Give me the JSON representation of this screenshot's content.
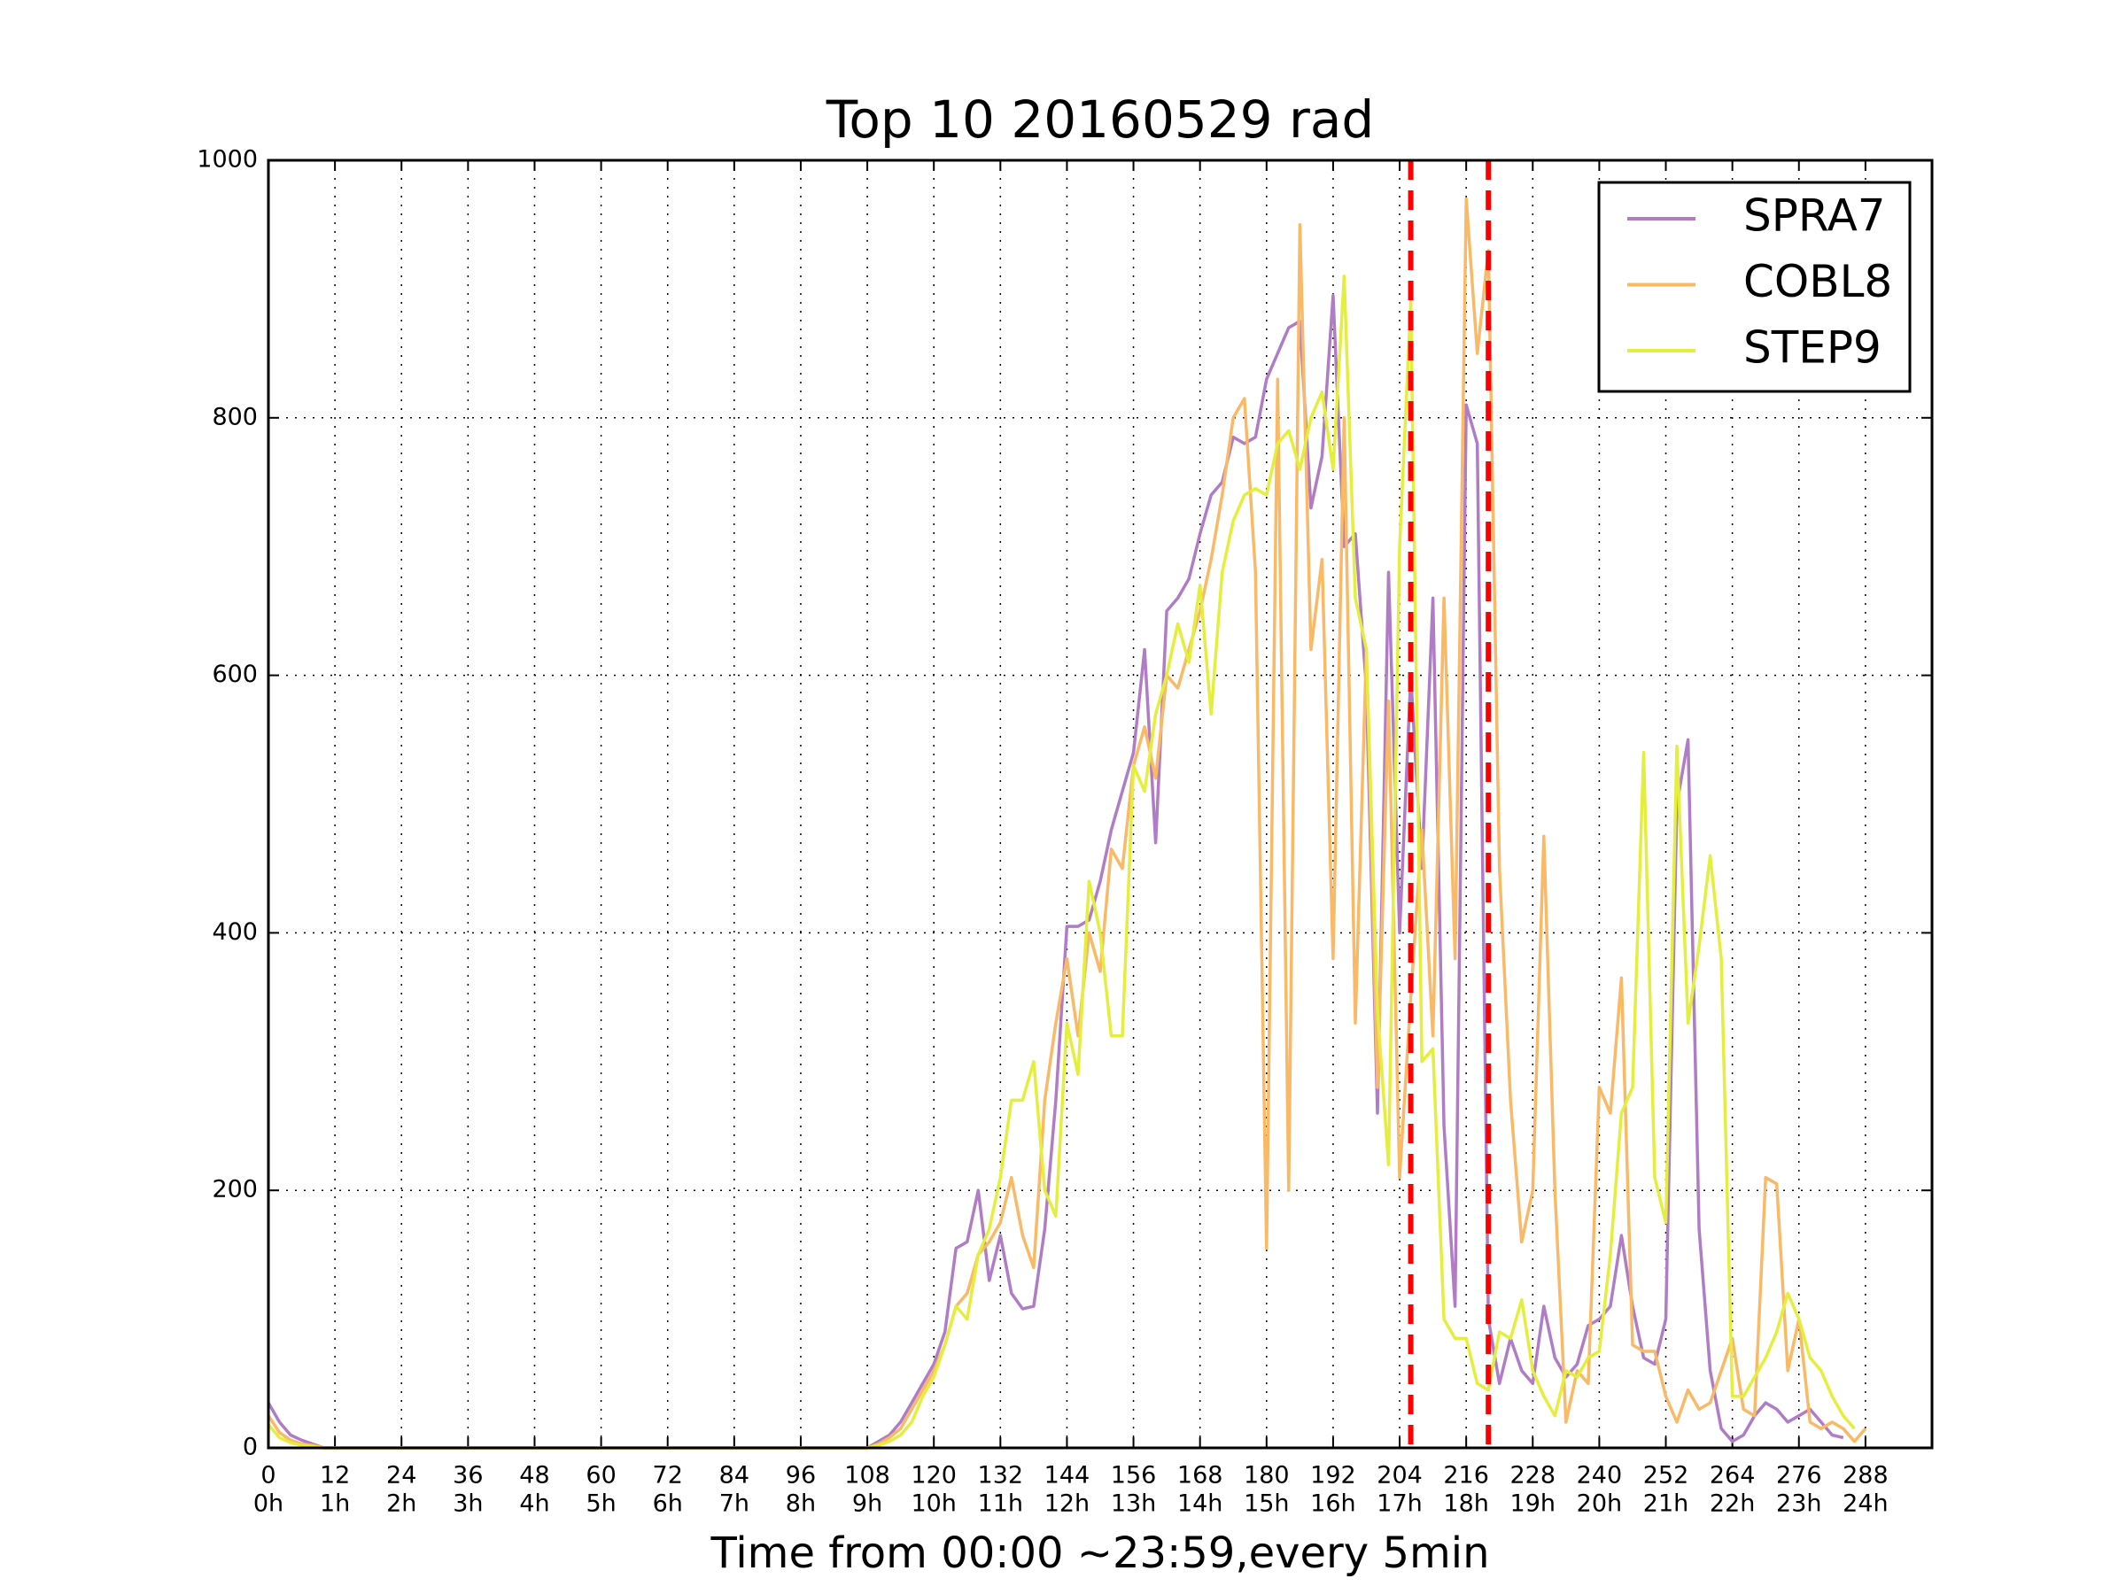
{
  "chart_data": {
    "type": "line",
    "title": "Top 10 20160529 rad",
    "xlabel": "Time from 00:00 ~23:59,every 5min",
    "x": [
      0,
      2,
      4,
      6,
      8,
      10,
      12,
      14,
      16,
      18,
      20,
      22,
      24,
      26,
      28,
      30,
      32,
      34,
      36,
      38,
      40,
      42,
      44,
      46,
      48,
      50,
      52,
      54,
      56,
      58,
      60,
      62,
      64,
      66,
      68,
      70,
      72,
      74,
      76,
      78,
      80,
      82,
      84,
      86,
      88,
      90,
      92,
      94,
      96,
      98,
      100,
      102,
      104,
      106,
      108,
      110,
      112,
      114,
      116,
      118,
      120,
      122,
      124,
      126,
      128,
      130,
      132,
      134,
      136,
      138,
      140,
      142,
      144,
      146,
      148,
      150,
      152,
      154,
      156,
      158,
      160,
      162,
      164,
      166,
      168,
      170,
      172,
      174,
      176,
      178,
      180,
      182,
      184,
      186,
      188,
      190,
      192,
      194,
      196,
      198,
      200,
      202,
      204,
      206,
      208,
      210,
      212,
      214,
      216,
      218,
      220,
      222,
      224,
      226,
      228,
      230,
      232,
      234,
      236,
      238,
      240,
      242,
      244,
      246,
      248,
      250,
      252,
      254,
      256,
      258,
      260,
      262,
      264,
      266,
      268,
      270,
      272,
      274,
      276,
      278,
      280,
      282,
      284,
      286,
      288
    ],
    "series": [
      {
        "name": "SPRA7",
        "color": "#b07cc6",
        "values": [
          35,
          20,
          10,
          6,
          3,
          0,
          0,
          0,
          0,
          0,
          0,
          0,
          0,
          0,
          0,
          0,
          0,
          0,
          0,
          0,
          0,
          0,
          0,
          0,
          0,
          0,
          0,
          0,
          0,
          0,
          0,
          0,
          0,
          0,
          0,
          0,
          0,
          0,
          0,
          0,
          0,
          0,
          0,
          0,
          0,
          0,
          0,
          0,
          0,
          0,
          0,
          0,
          0,
          0,
          0,
          5,
          10,
          20,
          35,
          50,
          65,
          90,
          155,
          160,
          200,
          130,
          165,
          120,
          108,
          110,
          170,
          270,
          405,
          405,
          410,
          440,
          480,
          510,
          540,
          620,
          470,
          650,
          660,
          675,
          710,
          740,
          750,
          785,
          780,
          785,
          830,
          850,
          870,
          875,
          730,
          770,
          895,
          700,
          710,
          590,
          260,
          680,
          400,
          600,
          450,
          660,
          250,
          110,
          810,
          780,
          100,
          50,
          85,
          60,
          50,
          110,
          70,
          55,
          65,
          95,
          100,
          110,
          165,
          110,
          70,
          65,
          100,
          500,
          550,
          170,
          60,
          15,
          5,
          10,
          25,
          35,
          30,
          20,
          25,
          30,
          20,
          10,
          8,
          null,
          null
        ]
      },
      {
        "name": "COBL8",
        "color": "#f9b966",
        "values": [
          25,
          12,
          6,
          3,
          2,
          0,
          0,
          0,
          0,
          0,
          0,
          0,
          0,
          0,
          0,
          0,
          0,
          0,
          0,
          0,
          0,
          0,
          0,
          0,
          0,
          0,
          0,
          0,
          0,
          0,
          0,
          0,
          0,
          0,
          0,
          0,
          0,
          0,
          0,
          0,
          0,
          0,
          0,
          0,
          0,
          0,
          0,
          0,
          0,
          0,
          0,
          0,
          0,
          0,
          0,
          3,
          8,
          15,
          30,
          45,
          60,
          80,
          110,
          120,
          150,
          160,
          175,
          210,
          165,
          140,
          270,
          330,
          380,
          320,
          400,
          370,
          465,
          450,
          530,
          560,
          520,
          600,
          590,
          620,
          650,
          690,
          740,
          800,
          815,
          680,
          155,
          830,
          200,
          950,
          620,
          690,
          380,
          800,
          330,
          620,
          280,
          580,
          210,
          350,
          480,
          320,
          660,
          380,
          970,
          850,
          930,
          450,
          270,
          160,
          200,
          475,
          200,
          20,
          60,
          50,
          280,
          260,
          365,
          80,
          75,
          75,
          40,
          20,
          45,
          30,
          35,
          60,
          85,
          30,
          25,
          210,
          205,
          60,
          100,
          20,
          15,
          20,
          15,
          5,
          15
        ]
      },
      {
        "name": "STEP9",
        "color": "#e4ee3c",
        "values": [
          18,
          8,
          4,
          2,
          1,
          0,
          0,
          0,
          0,
          0,
          0,
          0,
          0,
          0,
          0,
          0,
          0,
          0,
          0,
          0,
          0,
          0,
          0,
          0,
          0,
          0,
          0,
          0,
          0,
          0,
          0,
          0,
          0,
          0,
          0,
          0,
          0,
          0,
          0,
          0,
          0,
          0,
          0,
          0,
          0,
          0,
          0,
          0,
          0,
          0,
          0,
          0,
          0,
          0,
          0,
          2,
          5,
          10,
          20,
          40,
          55,
          80,
          110,
          100,
          150,
          170,
          210,
          270,
          270,
          300,
          200,
          180,
          330,
          290,
          440,
          400,
          320,
          320,
          530,
          510,
          570,
          600,
          640,
          610,
          670,
          570,
          680,
          720,
          740,
          745,
          740,
          780,
          790,
          760,
          800,
          820,
          760,
          910,
          660,
          620,
          340,
          220,
          700,
          890,
          300,
          310,
          100,
          85,
          85,
          50,
          45,
          90,
          85,
          115,
          60,
          40,
          25,
          60,
          55,
          70,
          75,
          150,
          260,
          280,
          540,
          210,
          175,
          545,
          330,
          390,
          460,
          380,
          40,
          40,
          55,
          70,
          90,
          120,
          100,
          70,
          60,
          40,
          25,
          15,
          null
        ]
      }
    ],
    "xlim": [
      0,
      300
    ],
    "xticks": [
      0,
      12,
      24,
      36,
      48,
      60,
      72,
      84,
      96,
      108,
      120,
      132,
      144,
      156,
      168,
      180,
      192,
      204,
      216,
      228,
      240,
      252,
      264,
      276,
      288
    ],
    "xtick_hours": [
      "0h",
      "1h",
      "2h",
      "3h",
      "4h",
      "5h",
      "6h",
      "7h",
      "8h",
      "9h",
      "10h",
      "11h",
      "12h",
      "13h",
      "14h",
      "15h",
      "16h",
      "17h",
      "18h",
      "19h",
      "20h",
      "21h",
      "22h",
      "23h",
      "24h"
    ],
    "ylim": [
      0,
      1000
    ],
    "yticks": [
      0,
      200,
      400,
      600,
      800,
      1000
    ],
    "grid": true,
    "vlines": [
      206,
      220
    ],
    "vline_color": "#ff0000",
    "legend": "upper right"
  }
}
